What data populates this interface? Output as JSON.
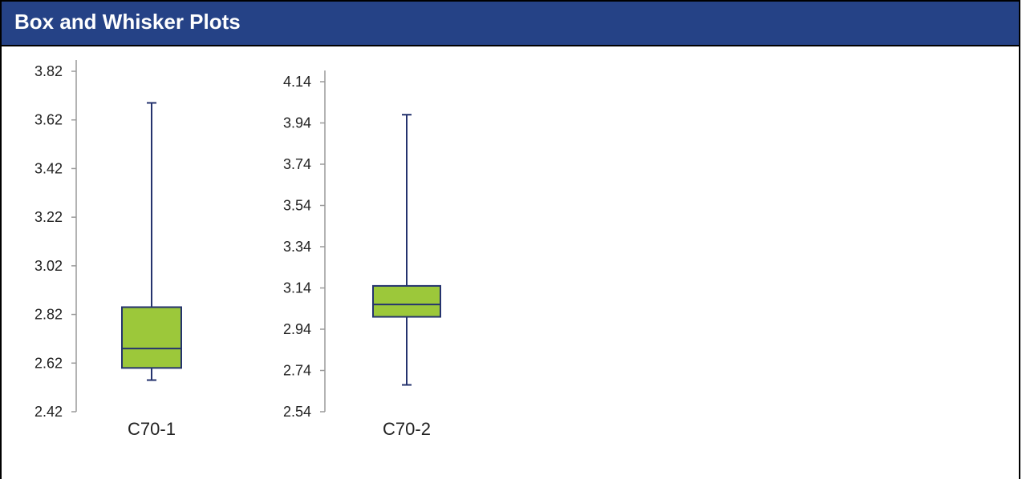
{
  "header": {
    "title": "Box and Whisker Plots"
  },
  "colors": {
    "box_fill": "#9CC83A",
    "stroke": "#25336E",
    "axis": "#9a9a9a",
    "header_bg": "#254286"
  },
  "chart_data": [
    {
      "type": "box",
      "category": "C70-1",
      "ylim": [
        2.42,
        3.82
      ],
      "ticks": [
        "2.42",
        "2.62",
        "2.82",
        "3.02",
        "3.22",
        "3.42",
        "3.62",
        "3.82"
      ],
      "min": 2.55,
      "q1": 2.6,
      "median": 2.68,
      "q3": 2.85,
      "max": 3.69
    },
    {
      "type": "box",
      "category": "C70-2",
      "ylim": [
        2.54,
        4.14
      ],
      "ticks": [
        "2.54",
        "2.74",
        "2.94",
        "3.14",
        "3.34",
        "3.54",
        "3.74",
        "3.94",
        "4.14"
      ],
      "min": 2.67,
      "q1": 3.0,
      "median": 3.06,
      "q3": 3.15,
      "max": 3.98
    }
  ]
}
